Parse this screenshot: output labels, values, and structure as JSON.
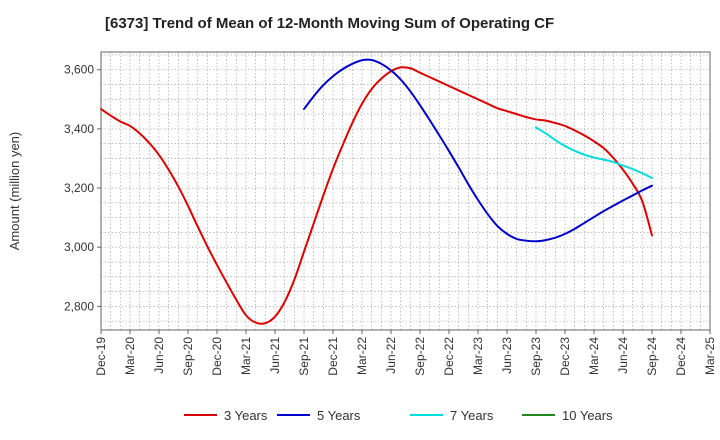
{
  "chart_data": {
    "type": "line",
    "title": "[6373]  Trend of Mean of 12-Month Moving Sum of Operating CF",
    "xlabel": "",
    "ylabel": "Amount (million yen)",
    "ylim": [
      2720,
      3660
    ],
    "yticks": [
      2800,
      3000,
      3200,
      3400,
      3600
    ],
    "ytick_labels": [
      "2,800",
      "3,000",
      "3,200",
      "3,400",
      "3,600"
    ],
    "x_range": [
      "2019-12",
      "2025-03"
    ],
    "xtick_labels": [
      "Dec-19",
      "Mar-20",
      "Jun-20",
      "Sep-20",
      "Dec-20",
      "Mar-21",
      "Jun-21",
      "Sep-21",
      "Dec-21",
      "Mar-22",
      "Jun-22",
      "Sep-22",
      "Dec-22",
      "Mar-23",
      "Jun-23",
      "Sep-23",
      "Dec-23",
      "Mar-24",
      "Jun-24",
      "Sep-24",
      "Dec-24",
      "Mar-25"
    ],
    "grid": true,
    "legend_position": "bottom",
    "series": [
      {
        "name": "3 Years",
        "color": "#dd0000",
        "x": [
          "2019-12",
          "2020-01",
          "2020-02",
          "2020-03",
          "2020-04",
          "2020-05",
          "2020-06",
          "2020-07",
          "2020-08",
          "2020-09",
          "2020-10",
          "2020-11",
          "2020-12",
          "2021-01",
          "2021-02",
          "2021-03",
          "2021-04",
          "2021-05",
          "2021-06",
          "2021-07",
          "2021-08",
          "2021-09",
          "2021-10",
          "2021-11",
          "2021-12",
          "2022-01",
          "2022-02",
          "2022-03",
          "2022-04",
          "2022-05",
          "2022-06",
          "2022-07",
          "2022-08",
          "2022-09",
          "2022-10",
          "2022-11",
          "2022-12",
          "2023-01",
          "2023-02",
          "2023-03",
          "2023-04",
          "2023-05",
          "2023-06",
          "2023-07",
          "2023-08",
          "2023-09",
          "2023-10",
          "2023-11",
          "2023-12",
          "2024-01",
          "2024-02",
          "2024-03",
          "2024-04",
          "2024-05",
          "2024-06",
          "2024-07",
          "2024-08",
          "2024-09"
        ],
        "values": [
          3467,
          3445,
          3425,
          3410,
          3385,
          3352,
          3312,
          3262,
          3205,
          3140,
          3070,
          3003,
          2940,
          2880,
          2822,
          2770,
          2745,
          2743,
          2765,
          2815,
          2890,
          2985,
          3080,
          3175,
          3265,
          3345,
          3420,
          3485,
          3535,
          3570,
          3595,
          3608,
          3605,
          3590,
          3575,
          3560,
          3545,
          3530,
          3515,
          3500,
          3485,
          3470,
          3460,
          3450,
          3440,
          3432,
          3428,
          3420,
          3410,
          3395,
          3378,
          3358,
          3335,
          3302,
          3262,
          3215,
          3155,
          3040
        ]
      },
      {
        "name": "5 Years",
        "color": "#0000cc",
        "x": [
          "2021-09",
          "2021-10",
          "2021-11",
          "2021-12",
          "2022-01",
          "2022-02",
          "2022-03",
          "2022-04",
          "2022-05",
          "2022-06",
          "2022-07",
          "2022-08",
          "2022-09",
          "2022-10",
          "2022-11",
          "2022-12",
          "2023-01",
          "2023-02",
          "2023-03",
          "2023-04",
          "2023-05",
          "2023-06",
          "2023-07",
          "2023-08",
          "2023-09",
          "2023-10",
          "2023-11",
          "2023-12",
          "2024-01",
          "2024-02",
          "2024-03",
          "2024-04",
          "2024-05",
          "2024-06",
          "2024-07",
          "2024-08",
          "2024-09"
        ],
        "values": [
          3467,
          3510,
          3548,
          3578,
          3602,
          3620,
          3632,
          3633,
          3620,
          3598,
          3567,
          3527,
          3480,
          3430,
          3378,
          3325,
          3270,
          3213,
          3160,
          3112,
          3072,
          3045,
          3028,
          3022,
          3020,
          3024,
          3032,
          3045,
          3062,
          3082,
          3102,
          3122,
          3140,
          3158,
          3175,
          3192,
          3208
        ]
      },
      {
        "name": "7 Years",
        "color": "#00dddd",
        "x": [
          "2023-09",
          "2023-10",
          "2023-11",
          "2023-12",
          "2024-01",
          "2024-02",
          "2024-03",
          "2024-04",
          "2024-05",
          "2024-06",
          "2024-07",
          "2024-08",
          "2024-09"
        ],
        "values": [
          3405,
          3385,
          3362,
          3342,
          3326,
          3313,
          3303,
          3296,
          3288,
          3276,
          3264,
          3250,
          3234
        ]
      },
      {
        "name": "10 Years",
        "color": "#228822",
        "x": [],
        "values": []
      }
    ]
  }
}
